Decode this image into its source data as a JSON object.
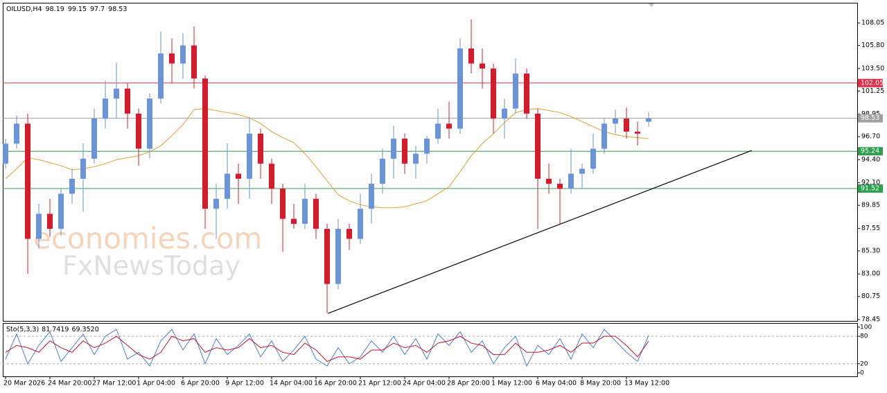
{
  "chart_data": {
    "type": "candlestick",
    "symbol": "OILUSD,H4",
    "watermark": [
      "economies.com",
      "FxNewsToday"
    ],
    "up_color": "#6a93d8",
    "down_color": "#d7192c",
    "ma_color": "#e0a030",
    "ylim": [
      78.31,
      110.06
    ],
    "yticks": [
      108.05,
      {
        "value": 105.8,
        "label": "105.80"
      },
      {
        "value": 103.5,
        "label": "103.50"
      },
      101.25,
      98.95,
      {
        "value": 96.7,
        "label": "96.70"
      },
      {
        "value": 94.4,
        "label": "94.40"
      },
      {
        "value": 92.1,
        "label": "92.10"
      },
      89.85,
      87.55,
      {
        "value": 85.3,
        "label": "85.30"
      },
      {
        "value": 83.0,
        "label": "83.00"
      },
      80.75,
      78.45
    ],
    "categories": [
      "20 Mar 2026",
      null,
      null,
      null,
      "24 Mar 20:00",
      null,
      null,
      null,
      "27 Mar 12:00",
      null,
      null,
      null,
      "1 Apr 04:00",
      null,
      null,
      null,
      "6 Apr 20:00",
      null,
      null,
      null,
      "9 Apr 12:00",
      null,
      null,
      null,
      "14 Apr 04:00",
      null,
      null,
      null,
      "16 Apr 20:00",
      null,
      null,
      null,
      "21 Apr 12:00",
      null,
      null,
      null,
      "24 Apr 04:00",
      null,
      null,
      null,
      "28 Apr 20:00",
      null,
      null,
      null,
      "1 May 12:00",
      null,
      null,
      null,
      "6 May 04:00",
      null,
      null,
      null,
      "8 May 20:00",
      null,
      null,
      null,
      "13 May 12:00",
      null,
      null
    ],
    "candles": [
      [
        94.0,
        96.5,
        93.5,
        96.0
      ],
      [
        96.0,
        98.8,
        95.5,
        98.0
      ],
      [
        98.0,
        99.0,
        83.0,
        86.5
      ],
      [
        86.5,
        90.0,
        85.5,
        89.0
      ],
      [
        89.0,
        90.5,
        86.7,
        87.5
      ],
      [
        87.5,
        91.5,
        86.8,
        91.0
      ],
      [
        91.0,
        93.5,
        90.0,
        92.5
      ],
      [
        92.5,
        96.0,
        89.2,
        94.5
      ],
      [
        94.5,
        99.5,
        94.0,
        98.5
      ],
      [
        98.5,
        102.3,
        97.5,
        100.5
      ],
      [
        100.5,
        104.1,
        98.5,
        101.5
      ],
      [
        101.5,
        102.0,
        97.5,
        99.0
      ],
      [
        99.0,
        99.5,
        93.8,
        95.5
      ],
      [
        95.5,
        101.0,
        94.5,
        100.5
      ],
      [
        100.5,
        107.2,
        100.0,
        105.0
      ],
      [
        105.0,
        106.5,
        102.0,
        104.0
      ],
      [
        104.0,
        107.0,
        102.5,
        105.8
      ],
      [
        105.8,
        107.7,
        101.5,
        102.5
      ],
      [
        102.5,
        102.8,
        87.5,
        89.5
      ],
      [
        89.5,
        92.0,
        86.5,
        90.5
      ],
      [
        90.5,
        96.0,
        89.5,
        93.0
      ],
      [
        93.0,
        94.0,
        90.0,
        92.5
      ],
      [
        92.5,
        98.6,
        90.5,
        97.0
      ],
      [
        97.0,
        97.5,
        92.5,
        94.0
      ],
      [
        94.0,
        94.5,
        90.0,
        91.5
      ],
      [
        91.5,
        92.0,
        85.2,
        88.5
      ],
      [
        88.5,
        90.0,
        87.5,
        88.0
      ],
      [
        88.0,
        92.0,
        87.5,
        90.5
      ],
      [
        90.5,
        91.0,
        86.5,
        87.5
      ],
      [
        87.5,
        88.0,
        79.05,
        82.0
      ],
      [
        82.0,
        88.5,
        81.5,
        87.5
      ],
      [
        87.5,
        88.0,
        85.4,
        86.5
      ],
      [
        86.5,
        91.0,
        86.0,
        89.5
      ],
      [
        89.5,
        93.0,
        88.0,
        92.0
      ],
      [
        92.0,
        95.5,
        91.0,
        94.5
      ],
      [
        94.5,
        97.8,
        92.5,
        96.5
      ],
      [
        96.5,
        97.0,
        93.0,
        94.0
      ],
      [
        94.0,
        95.8,
        92.5,
        95.0
      ],
      [
        95.0,
        96.8,
        94.0,
        96.5
      ],
      [
        96.5,
        99.5,
        96.0,
        98.0
      ],
      [
        98.0,
        100.2,
        96.5,
        97.5
      ],
      [
        97.5,
        106.5,
        97.0,
        105.5
      ],
      [
        105.5,
        108.4,
        103.0,
        104.0
      ],
      [
        104.0,
        105.5,
        101.5,
        103.5
      ],
      [
        103.5,
        104.0,
        97.0,
        98.5
      ],
      [
        98.5,
        100.5,
        96.5,
        99.5
      ],
      [
        99.5,
        104.5,
        99.0,
        103.0
      ],
      [
        103.0,
        103.5,
        98.5,
        99.0
      ],
      [
        99.0,
        99.5,
        87.5,
        92.5
      ],
      [
        92.5,
        94.0,
        91.0,
        92.0
      ],
      [
        92.0,
        92.5,
        88.0,
        91.5
      ],
      [
        91.5,
        95.5,
        91.0,
        93.0
      ],
      [
        93.0,
        94.0,
        91.5,
        93.5
      ],
      [
        93.5,
        97.0,
        93.0,
        95.5
      ],
      [
        95.5,
        98.5,
        95.0,
        98.0
      ],
      [
        98.0,
        99.4,
        97.0,
        98.5
      ],
      [
        98.5,
        99.6,
        96.5,
        97.2
      ],
      [
        97.2,
        98.2,
        95.8,
        97.0
      ],
      [
        98.19,
        99.15,
        97.7,
        98.53
      ]
    ],
    "ma": [
      92.5,
      93.5,
      94.6,
      94.4,
      94.1,
      93.8,
      93.4,
      93.5,
      93.7,
      94.0,
      94.4,
      94.6,
      94.8,
      95.2,
      95.8,
      96.8,
      97.9,
      99.4,
      99.5,
      99.3,
      99.1,
      98.9,
      98.6,
      98.0,
      97.2,
      96.6,
      96.1,
      95.0,
      93.7,
      92.3,
      90.9,
      90.3,
      89.9,
      89.7,
      89.6,
      89.6,
      89.7,
      90.0,
      90.3,
      91.0,
      91.7,
      93.2,
      94.8,
      96.0,
      97.0,
      98.1,
      99.1,
      99.4,
      99.5,
      99.3,
      99.1,
      98.7,
      98.2,
      97.7,
      97.2,
      96.9,
      96.7,
      96.6,
      96.5
    ],
    "levels": [
      {
        "value": 102.05,
        "color": "#e0314b"
      },
      {
        "value": 98.53,
        "color": "#a0a0a0"
      },
      {
        "value": 95.24,
        "color": "#2e9e4f"
      },
      {
        "value": 91.52,
        "color": "#2e9e4f"
      }
    ],
    "trendline": {
      "x": [
        29.1,
        67.3
      ],
      "y": [
        79.07,
        95.32
      ]
    },
    "stochastic": {
      "name": "Sto(5,3,3)",
      "current": [
        "81.7419",
        "69.3520"
      ],
      "ylim": [
        -7.6,
        109
      ],
      "yticks": [
        100,
        80,
        20,
        0
      ],
      "levels": [
        80,
        20
      ],
      "k_color": "#4a7fd0",
      "d_color": "#c8102e",
      "k": [
        30,
        85,
        20,
        60,
        90,
        25,
        55,
        85,
        40,
        80,
        95,
        30,
        45,
        15,
        70,
        95,
        50,
        85,
        20,
        75,
        40,
        60,
        85,
        35,
        70,
        25,
        50,
        80,
        30,
        15,
        55,
        20,
        35,
        70,
        45,
        80,
        40,
        75,
        30,
        85,
        60,
        90,
        45,
        70,
        20,
        55,
        80,
        15,
        60,
        40,
        75,
        30,
        85,
        55,
        95,
        70,
        45,
        25,
        81.7419
      ],
      "d": [
        45,
        60,
        55,
        45,
        70,
        55,
        45,
        70,
        55,
        65,
        80,
        60,
        40,
        30,
        45,
        80,
        70,
        75,
        45,
        55,
        50,
        55,
        75,
        55,
        60,
        45,
        40,
        65,
        50,
        25,
        35,
        35,
        30,
        50,
        50,
        65,
        55,
        60,
        45,
        65,
        70,
        80,
        65,
        60,
        40,
        40,
        65,
        45,
        45,
        50,
        60,
        45,
        65,
        65,
        80,
        80,
        60,
        35,
        69.352
      ]
    }
  }
}
